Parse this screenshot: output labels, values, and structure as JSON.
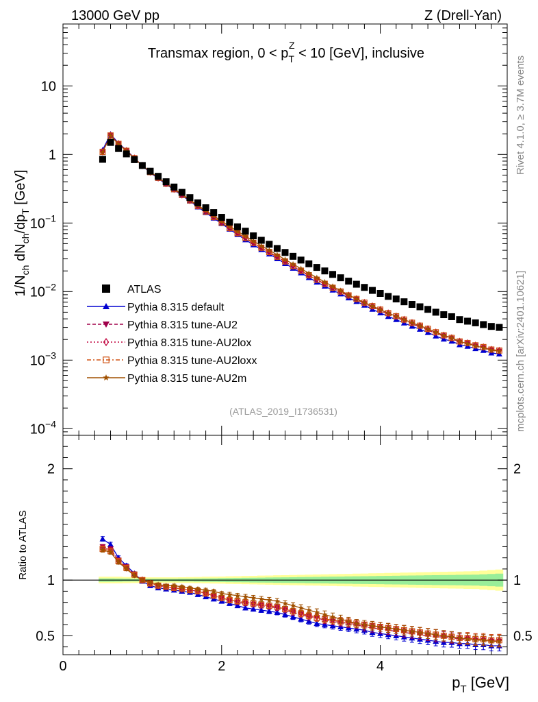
{
  "header": {
    "energy_label": "13000 GeV pp",
    "process_label": "Z (Drell-Yan)"
  },
  "side_text": {
    "rivet": "Rivet 4.1.0, ≥ 3.7M events",
    "mcplots": "mcplots.cern.ch [arXiv:2401.10621]"
  },
  "chart_data": {
    "type": "scatter",
    "title": "Transmax region, 0 < p_T^Z < 10 [GeV], inclusive",
    "title_parts": {
      "before": "Transmax region, 0 < p",
      "sup": "Z",
      "sub": "T",
      "after": " < 10 [GeV], inclusive"
    },
    "watermark": "(ATLAS_2019_I1736531)",
    "xlabel": "p_T [GeV]",
    "xlabel_parts": {
      "main": "p",
      "sub": "T",
      "unit": " [GeV]"
    },
    "ylabel": "1/N_ch dN_ch/dp_T [GeV]",
    "ylabel_parts": [
      "1/N",
      "ch",
      " dN",
      "ch",
      "/dp",
      "T",
      " [GeV]"
    ],
    "ratio_ylabel": "Ratio to ATLAS",
    "xlim": [
      0,
      5.6
    ],
    "ylim_top": [
      8e-05,
      80
    ],
    "ylim_ratio": [
      0.33,
      2.3
    ],
    "x_ticks": [
      "0",
      "2",
      "4"
    ],
    "y_ticks_top": [
      {
        "value": 10,
        "mantissa": "10",
        "exp": ""
      },
      {
        "value": 1,
        "mantissa": "1",
        "exp": ""
      },
      {
        "value": 0.1,
        "mantissa": "10",
        "exp": "−1"
      },
      {
        "value": 0.01,
        "mantissa": "10",
        "exp": "−2"
      },
      {
        "value": 0.001,
        "mantissa": "10",
        "exp": "−3"
      },
      {
        "value": 0.0001,
        "mantissa": "10",
        "exp": "−4"
      }
    ],
    "y_ticks_ratio": [
      "0.5",
      "1",
      "2"
    ],
    "x": [
      0.5,
      0.6,
      0.7,
      0.8,
      0.9,
      1.0,
      1.1,
      1.2,
      1.3,
      1.4,
      1.5,
      1.6,
      1.7,
      1.8,
      1.9,
      2.0,
      2.1,
      2.2,
      2.3,
      2.4,
      2.5,
      2.6,
      2.7,
      2.8,
      2.9,
      3.0,
      3.1,
      3.2,
      3.3,
      3.4,
      3.5,
      3.6,
      3.7,
      3.8,
      3.9,
      4.0,
      4.1,
      4.2,
      4.3,
      4.4,
      4.5,
      4.6,
      4.7,
      4.8,
      4.9,
      5.0,
      5.1,
      5.2,
      5.3,
      5.4,
      5.5
    ],
    "data_series": {
      "name": "ATLAS",
      "color": "#000000",
      "values": [
        0.85,
        1.5,
        1.22,
        1.02,
        0.84,
        0.69,
        0.57,
        0.48,
        0.4,
        0.335,
        0.28,
        0.235,
        0.197,
        0.167,
        0.142,
        0.121,
        0.103,
        0.088,
        0.076,
        0.065,
        0.056,
        0.049,
        0.0425,
        0.0372,
        0.0327,
        0.0288,
        0.0254,
        0.0225,
        0.02,
        0.0178,
        0.0159,
        0.0142,
        0.0128,
        0.0115,
        0.0104,
        0.0094,
        0.0085,
        0.0078,
        0.0071,
        0.0065,
        0.006,
        0.0055,
        0.005,
        0.0046,
        0.0043,
        0.0039,
        0.0037,
        0.0035,
        0.0033,
        0.0031,
        0.003
      ],
      "band_yellow_halfwidth": [
        0.03,
        0.03,
        0.03,
        0.028,
        0.027,
        0.026,
        0.025,
        0.025,
        0.025,
        0.025,
        0.026,
        0.027,
        0.028,
        0.03,
        0.031,
        0.032,
        0.034,
        0.035,
        0.037,
        0.038,
        0.04,
        0.041,
        0.043,
        0.044,
        0.046,
        0.047,
        0.049,
        0.05,
        0.052,
        0.053,
        0.055,
        0.056,
        0.058,
        0.059,
        0.061,
        0.062,
        0.064,
        0.065,
        0.067,
        0.068,
        0.07,
        0.071,
        0.073,
        0.074,
        0.076,
        0.077,
        0.079,
        0.08,
        0.085,
        0.09,
        0.095
      ],
      "band_green_halfwidth": [
        0.015,
        0.015,
        0.014,
        0.013,
        0.012,
        0.012,
        0.012,
        0.012,
        0.012,
        0.012,
        0.013,
        0.013,
        0.014,
        0.015,
        0.016,
        0.017,
        0.018,
        0.019,
        0.02,
        0.021,
        0.022,
        0.023,
        0.024,
        0.025,
        0.026,
        0.027,
        0.028,
        0.029,
        0.03,
        0.031,
        0.032,
        0.033,
        0.034,
        0.035,
        0.036,
        0.037,
        0.038,
        0.039,
        0.04,
        0.041,
        0.042,
        0.043,
        0.044,
        0.045,
        0.046,
        0.047,
        0.048,
        0.049,
        0.052,
        0.055,
        0.058
      ]
    },
    "series": [
      {
        "name": "Pythia 8.315 default",
        "legend_label": "Pythia 8.315 default",
        "color": "#0000d0",
        "marker": "triangle-up",
        "line": "solid",
        "ratio": [
          1.37,
          1.32,
          1.2,
          1.13,
          1.06,
          0.99,
          0.95,
          0.93,
          0.92,
          0.91,
          0.9,
          0.89,
          0.87,
          0.85,
          0.83,
          0.81,
          0.79,
          0.77,
          0.75,
          0.74,
          0.73,
          0.72,
          0.71,
          0.69,
          0.67,
          0.65,
          0.63,
          0.61,
          0.6,
          0.59,
          0.58,
          0.57,
          0.56,
          0.55,
          0.53,
          0.52,
          0.51,
          0.5,
          0.49,
          0.48,
          0.47,
          0.46,
          0.45,
          0.44,
          0.44,
          0.43,
          0.43,
          0.42,
          0.42,
          0.41,
          0.41
        ],
        "err": [
          0.01,
          0.01,
          0.01,
          0.01,
          0.01,
          0.01,
          0.01,
          0.01,
          0.01,
          0.01,
          0.01,
          0.01,
          0.012,
          0.012,
          0.013,
          0.014,
          0.015,
          0.016,
          0.017,
          0.018,
          0.019,
          0.02,
          0.021,
          0.022,
          0.024,
          0.026,
          0.028,
          0.03,
          0.032,
          0.034,
          0.036,
          0.038,
          0.04,
          0.042,
          0.044,
          0.046,
          0.048,
          0.05,
          0.052,
          0.054,
          0.056,
          0.058,
          0.06,
          0.062,
          0.064,
          0.066,
          0.068,
          0.07,
          0.072,
          0.074,
          0.076
        ]
      },
      {
        "name": "Pythia 8.315 tune-AU2",
        "legend_label": "Pythia 8.315 tune-AU2",
        "color": "#a0004a",
        "marker": "triangle-down",
        "line": "dashed",
        "ratio": [
          1.3,
          1.28,
          1.18,
          1.12,
          1.05,
          1.0,
          0.97,
          0.95,
          0.94,
          0.93,
          0.92,
          0.91,
          0.9,
          0.88,
          0.86,
          0.84,
          0.82,
          0.8,
          0.79,
          0.78,
          0.77,
          0.76,
          0.75,
          0.73,
          0.71,
          0.69,
          0.67,
          0.66,
          0.64,
          0.63,
          0.62,
          0.61,
          0.6,
          0.58,
          0.57,
          0.56,
          0.55,
          0.54,
          0.53,
          0.52,
          0.51,
          0.5,
          0.49,
          0.49,
          0.48,
          0.47,
          0.47,
          0.46,
          0.46,
          0.45,
          0.45
        ],
        "err": [
          0.01,
          0.01,
          0.01,
          0.01,
          0.01,
          0.01,
          0.01,
          0.01,
          0.01,
          0.01,
          0.01,
          0.01,
          0.012,
          0.012,
          0.013,
          0.014,
          0.015,
          0.016,
          0.017,
          0.018,
          0.019,
          0.02,
          0.021,
          0.022,
          0.024,
          0.026,
          0.028,
          0.03,
          0.032,
          0.034,
          0.036,
          0.038,
          0.04,
          0.042,
          0.044,
          0.046,
          0.048,
          0.05,
          0.052,
          0.054,
          0.056,
          0.058,
          0.06,
          0.062,
          0.064,
          0.066,
          0.068,
          0.07,
          0.072,
          0.074,
          0.076
        ]
      },
      {
        "name": "Pythia 8.315 tune-AU2lox",
        "legend_label": "Pythia 8.315 tune-AU2lox",
        "color": "#c0003c",
        "marker": "diamond-open",
        "line": "dotted",
        "ratio": [
          1.29,
          1.27,
          1.17,
          1.11,
          1.05,
          1.0,
          0.97,
          0.95,
          0.94,
          0.93,
          0.92,
          0.91,
          0.9,
          0.88,
          0.86,
          0.84,
          0.82,
          0.81,
          0.8,
          0.79,
          0.78,
          0.77,
          0.76,
          0.74,
          0.72,
          0.7,
          0.68,
          0.67,
          0.65,
          0.64,
          0.63,
          0.62,
          0.61,
          0.6,
          0.59,
          0.58,
          0.57,
          0.56,
          0.55,
          0.54,
          0.53,
          0.52,
          0.51,
          0.5,
          0.49,
          0.48,
          0.48,
          0.47,
          0.47,
          0.46,
          0.46
        ],
        "err": [
          0.01,
          0.01,
          0.01,
          0.01,
          0.01,
          0.01,
          0.01,
          0.01,
          0.01,
          0.01,
          0.01,
          0.01,
          0.012,
          0.012,
          0.013,
          0.014,
          0.015,
          0.016,
          0.017,
          0.018,
          0.019,
          0.02,
          0.021,
          0.022,
          0.024,
          0.026,
          0.028,
          0.03,
          0.032,
          0.034,
          0.036,
          0.038,
          0.04,
          0.042,
          0.044,
          0.046,
          0.048,
          0.05,
          0.052,
          0.054,
          0.056,
          0.058,
          0.06,
          0.062,
          0.064,
          0.066,
          0.068,
          0.07,
          0.072,
          0.074,
          0.076
        ]
      },
      {
        "name": "Pythia 8.315 tune-AU2loxx",
        "legend_label": "Pythia 8.315 tune-AU2loxx",
        "color": "#d05010",
        "marker": "square-open",
        "line": "dashdot",
        "ratio": [
          1.28,
          1.26,
          1.17,
          1.11,
          1.05,
          1.0,
          0.97,
          0.95,
          0.94,
          0.93,
          0.92,
          0.91,
          0.9,
          0.88,
          0.86,
          0.84,
          0.82,
          0.81,
          0.8,
          0.79,
          0.78,
          0.77,
          0.76,
          0.74,
          0.72,
          0.7,
          0.68,
          0.66,
          0.65,
          0.64,
          0.63,
          0.62,
          0.61,
          0.6,
          0.59,
          0.58,
          0.57,
          0.56,
          0.55,
          0.54,
          0.53,
          0.52,
          0.51,
          0.5,
          0.49,
          0.48,
          0.48,
          0.47,
          0.47,
          0.46,
          0.46
        ],
        "err": [
          0.01,
          0.01,
          0.01,
          0.01,
          0.01,
          0.01,
          0.01,
          0.01,
          0.01,
          0.01,
          0.01,
          0.01,
          0.012,
          0.012,
          0.013,
          0.014,
          0.015,
          0.016,
          0.017,
          0.018,
          0.019,
          0.02,
          0.021,
          0.022,
          0.024,
          0.026,
          0.028,
          0.03,
          0.032,
          0.034,
          0.036,
          0.038,
          0.04,
          0.042,
          0.044,
          0.046,
          0.048,
          0.05,
          0.052,
          0.054,
          0.056,
          0.058,
          0.06,
          0.062,
          0.064,
          0.066,
          0.068,
          0.07,
          0.072,
          0.074,
          0.076
        ]
      },
      {
        "name": "Pythia 8.315 tune-AU2m",
        "legend_label": "Pythia 8.315 tune-AU2m",
        "color": "#a05000",
        "marker": "star",
        "line": "solid",
        "ratio": [
          1.27,
          1.25,
          1.16,
          1.1,
          1.04,
          1.0,
          0.98,
          0.96,
          0.95,
          0.95,
          0.94,
          0.93,
          0.92,
          0.91,
          0.9,
          0.88,
          0.87,
          0.86,
          0.85,
          0.84,
          0.83,
          0.82,
          0.81,
          0.79,
          0.77,
          0.75,
          0.73,
          0.71,
          0.69,
          0.67,
          0.65,
          0.63,
          0.61,
          0.6,
          0.59,
          0.58,
          0.57,
          0.56,
          0.55,
          0.54,
          0.53,
          0.52,
          0.51,
          0.5,
          0.49,
          0.48,
          0.47,
          0.46,
          0.46,
          0.45,
          0.45
        ],
        "err": [
          0.01,
          0.01,
          0.01,
          0.01,
          0.01,
          0.01,
          0.01,
          0.01,
          0.01,
          0.01,
          0.01,
          0.01,
          0.012,
          0.012,
          0.013,
          0.014,
          0.015,
          0.016,
          0.017,
          0.018,
          0.019,
          0.02,
          0.021,
          0.022,
          0.024,
          0.026,
          0.028,
          0.03,
          0.032,
          0.034,
          0.036,
          0.038,
          0.04,
          0.042,
          0.044,
          0.046,
          0.048,
          0.05,
          0.052,
          0.054,
          0.056,
          0.058,
          0.06,
          0.062,
          0.064,
          0.066,
          0.068,
          0.07,
          0.072,
          0.074,
          0.076
        ]
      }
    ],
    "legend_placement": "lower-left",
    "grid": false
  }
}
